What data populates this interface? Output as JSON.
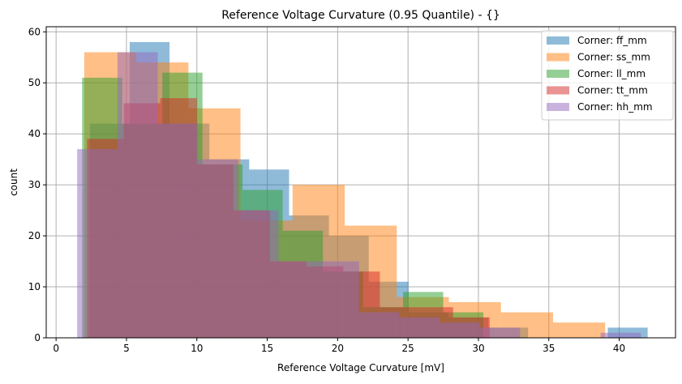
{
  "chart_data": {
    "type": "bar",
    "subtype": "overlapping-histogram",
    "title": "Reference Voltage Curvature (0.95 Quantile) - {}",
    "xlabel": "Reference Voltage Curvature [mV]",
    "ylabel": "count",
    "xlim": [
      -0.7,
      44
    ],
    "ylim": [
      0,
      61
    ],
    "xticks": [
      0,
      5,
      10,
      15,
      20,
      25,
      30,
      35,
      40
    ],
    "yticks": [
      0,
      10,
      20,
      30,
      40,
      50,
      60
    ],
    "grid": true,
    "legend_placement": "top-right",
    "alpha": 0.5,
    "series": [
      {
        "name": "Corner: ff_mm",
        "color": "#1f77b4",
        "bin_start": 2.4,
        "bin_width": 2.83,
        "counts": [
          42,
          58,
          42,
          35,
          33,
          24,
          20,
          11,
          5,
          4,
          2,
          0,
          0,
          2
        ]
      },
      {
        "name": "Corner: ss_mm",
        "color": "#ff7f0e",
        "bin_start": 2.0,
        "bin_width": 3.7,
        "counts": [
          56,
          54,
          45,
          23,
          30,
          22,
          8,
          7,
          5,
          3
        ]
      },
      {
        "name": "Corner: ll_mm",
        "color": "#2ca02c",
        "bin_start": 1.85,
        "bin_width": 2.85,
        "counts": [
          51,
          42,
          52,
          34,
          29,
          21,
          13,
          6,
          9,
          5
        ]
      },
      {
        "name": "Corner: tt_mm",
        "color": "#d62728",
        "bin_start": 2.2,
        "bin_width": 2.6,
        "counts": [
          39,
          46,
          47,
          34,
          25,
          15,
          14,
          13,
          6,
          6,
          4
        ]
      },
      {
        "name": "Corner: hh_mm",
        "color": "#9467bd",
        "bin_start": 1.5,
        "bin_width": 2.86,
        "counts": [
          37,
          56,
          42,
          35,
          25,
          15,
          15,
          5,
          4,
          3,
          2,
          0,
          0,
          1
        ]
      }
    ]
  }
}
